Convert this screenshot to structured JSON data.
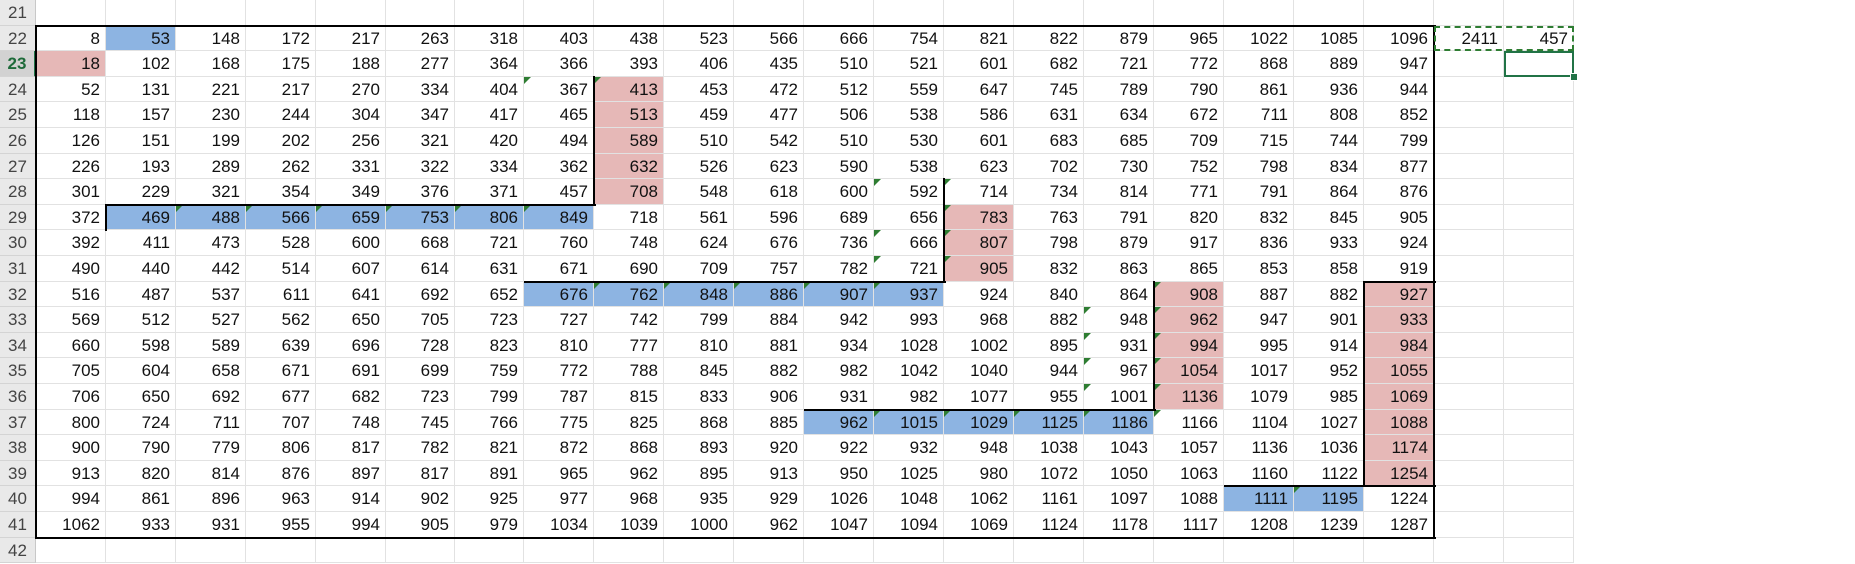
{
  "sheet": {
    "first_row": 21,
    "row_numbers": [
      "21",
      "22",
      "23",
      "24",
      "25",
      "26",
      "27",
      "28",
      "29",
      "30",
      "31",
      "32",
      "33",
      "34",
      "35",
      "36",
      "37",
      "38",
      "39",
      "40",
      "41",
      "42"
    ],
    "active_row": "23",
    "grid": [
      [
        "8",
        "53",
        "148",
        "172",
        "217",
        "263",
        "318",
        "403",
        "438",
        "523",
        "566",
        "666",
        "754",
        "821",
        "822",
        "879",
        "965",
        "1022",
        "1085",
        "1096",
        "2411",
        "457"
      ],
      [
        "18",
        "102",
        "168",
        "175",
        "188",
        "277",
        "364",
        "366",
        "393",
        "406",
        "435",
        "510",
        "521",
        "601",
        "682",
        "721",
        "772",
        "868",
        "889",
        "947",
        "",
        ""
      ],
      [
        "52",
        "131",
        "221",
        "217",
        "270",
        "334",
        "404",
        "367",
        "413",
        "453",
        "472",
        "512",
        "559",
        "647",
        "745",
        "789",
        "790",
        "861",
        "936",
        "944",
        "",
        ""
      ],
      [
        "118",
        "157",
        "230",
        "244",
        "304",
        "347",
        "417",
        "465",
        "513",
        "459",
        "477",
        "506",
        "538",
        "586",
        "631",
        "634",
        "672",
        "711",
        "808",
        "852",
        "",
        ""
      ],
      [
        "126",
        "151",
        "199",
        "202",
        "256",
        "321",
        "420",
        "494",
        "589",
        "510",
        "542",
        "510",
        "530",
        "601",
        "683",
        "685",
        "709",
        "715",
        "744",
        "799",
        "",
        ""
      ],
      [
        "226",
        "193",
        "289",
        "262",
        "331",
        "322",
        "334",
        "362",
        "632",
        "526",
        "623",
        "590",
        "538",
        "623",
        "702",
        "730",
        "752",
        "798",
        "834",
        "877",
        "",
        ""
      ],
      [
        "301",
        "229",
        "321",
        "354",
        "349",
        "376",
        "371",
        "457",
        "708",
        "548",
        "618",
        "600",
        "592",
        "714",
        "734",
        "814",
        "771",
        "791",
        "864",
        "876",
        "",
        ""
      ],
      [
        "372",
        "469",
        "488",
        "566",
        "659",
        "753",
        "806",
        "849",
        "718",
        "561",
        "596",
        "689",
        "656",
        "783",
        "763",
        "791",
        "820",
        "832",
        "845",
        "905",
        "",
        ""
      ],
      [
        "392",
        "411",
        "473",
        "528",
        "600",
        "668",
        "721",
        "760",
        "748",
        "624",
        "676",
        "736",
        "666",
        "807",
        "798",
        "879",
        "917",
        "836",
        "933",
        "924",
        "",
        ""
      ],
      [
        "490",
        "440",
        "442",
        "514",
        "607",
        "614",
        "631",
        "671",
        "690",
        "709",
        "757",
        "782",
        "721",
        "905",
        "832",
        "863",
        "865",
        "853",
        "858",
        "919",
        "",
        ""
      ],
      [
        "516",
        "487",
        "537",
        "611",
        "641",
        "692",
        "652",
        "676",
        "762",
        "848",
        "886",
        "907",
        "937",
        "924",
        "840",
        "864",
        "908",
        "887",
        "882",
        "927",
        "",
        ""
      ],
      [
        "569",
        "512",
        "527",
        "562",
        "650",
        "705",
        "723",
        "727",
        "742",
        "799",
        "884",
        "942",
        "993",
        "968",
        "882",
        "948",
        "962",
        "947",
        "901",
        "933",
        "",
        ""
      ],
      [
        "660",
        "598",
        "589",
        "639",
        "696",
        "728",
        "823",
        "810",
        "777",
        "810",
        "881",
        "934",
        "1028",
        "1002",
        "895",
        "931",
        "994",
        "995",
        "914",
        "984",
        "",
        ""
      ],
      [
        "705",
        "604",
        "658",
        "671",
        "691",
        "699",
        "759",
        "772",
        "788",
        "845",
        "882",
        "982",
        "1042",
        "1040",
        "944",
        "967",
        "1054",
        "1017",
        "952",
        "1055",
        "",
        ""
      ],
      [
        "706",
        "650",
        "692",
        "677",
        "682",
        "723",
        "799",
        "787",
        "815",
        "833",
        "906",
        "931",
        "982",
        "1077",
        "955",
        "1001",
        "1136",
        "1079",
        "985",
        "1069",
        "",
        ""
      ],
      [
        "800",
        "724",
        "711",
        "707",
        "748",
        "745",
        "766",
        "775",
        "825",
        "868",
        "885",
        "962",
        "1015",
        "1029",
        "1125",
        "1186",
        "1166",
        "1104",
        "1027",
        "1088",
        "",
        ""
      ],
      [
        "900",
        "790",
        "779",
        "806",
        "817",
        "782",
        "821",
        "872",
        "868",
        "893",
        "920",
        "922",
        "932",
        "948",
        "1038",
        "1043",
        "1057",
        "1136",
        "1036",
        "1174",
        "",
        ""
      ],
      [
        "913",
        "820",
        "814",
        "876",
        "897",
        "817",
        "891",
        "965",
        "962",
        "895",
        "913",
        "950",
        "1025",
        "980",
        "1072",
        "1050",
        "1063",
        "1160",
        "1122",
        "1254",
        "",
        ""
      ],
      [
        "994",
        "861",
        "896",
        "963",
        "914",
        "902",
        "925",
        "977",
        "968",
        "935",
        "929",
        "1026",
        "1048",
        "1062",
        "1161",
        "1097",
        "1088",
        "1111",
        "1195",
        "1224",
        "",
        ""
      ],
      [
        "1062",
        "933",
        "931",
        "955",
        "994",
        "905",
        "979",
        "1034",
        "1039",
        "1000",
        "962",
        "1047",
        "1094",
        "1069",
        "1124",
        "1178",
        "1117",
        "1208",
        "1239",
        "1287",
        "",
        ""
      ]
    ],
    "highlights": {
      "blue": [
        "0,1",
        "7,1",
        "7,2",
        "7,3",
        "7,4",
        "7,5",
        "7,6",
        "7,7",
        "10,7",
        "10,8",
        "10,9",
        "10,10",
        "10,11",
        "10,12",
        "15,11",
        "15,12",
        "15,13",
        "15,14",
        "15,15",
        "18,17",
        "18,18"
      ],
      "pink": [
        "1,0",
        "2,8",
        "3,8",
        "4,8",
        "5,8",
        "6,8",
        "7,13",
        "8,13",
        "9,13",
        "10,16",
        "11,16",
        "12,16",
        "13,16",
        "14,16",
        "10,19",
        "11,19",
        "12,19",
        "13,19",
        "14,19",
        "15,19",
        "16,19",
        "17,19"
      ]
    },
    "error_markers": [
      "7,2",
      "7,3",
      "7,4",
      "7,5",
      "7,6",
      "7,7",
      "2,7",
      "2,8",
      "10,8",
      "10,9",
      "10,10",
      "10,11",
      "10,12",
      "6,13",
      "7,13",
      "8,13",
      "9,13",
      "15,12",
      "15,13",
      "15,14",
      "15,15",
      "15,16",
      "11,15",
      "12,15",
      "13,15",
      "14,15",
      "10,16",
      "11,16",
      "12,16",
      "13,16",
      "14,16",
      "18,18",
      "9,12",
      "8,12",
      "6,12"
    ],
    "colors": {
      "blue": "#8db4e2",
      "pink": "#e6b8b7",
      "marker": "#2e7d32",
      "selection": "#217346"
    }
  }
}
